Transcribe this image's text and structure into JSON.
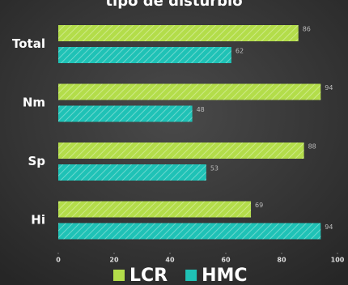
{
  "chart_data": {
    "type": "hbar",
    "title": "tipo de distúrbio",
    "categories": [
      "Total",
      "Nm",
      "Sp",
      "Hi"
    ],
    "series": [
      {
        "name": "LCR",
        "color": "#b3dd4a",
        "values": [
          86,
          94,
          88,
          69
        ]
      },
      {
        "name": "HMC",
        "color": "#1fc2b6",
        "values": [
          62,
          48,
          53,
          94
        ]
      }
    ],
    "xlim": [
      0,
      100
    ],
    "xticks": [
      0,
      20,
      40,
      60,
      80,
      100
    ],
    "legend": "bottom"
  }
}
